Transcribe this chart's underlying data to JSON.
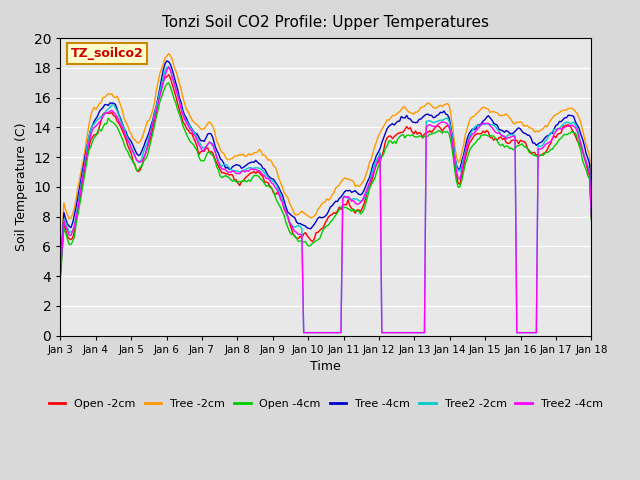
{
  "title": "Tonzi Soil CO2 Profile: Upper Temperatures",
  "xlabel": "Time",
  "ylabel": "Soil Temperature (C)",
  "ylim": [
    0,
    20
  ],
  "xlim": [
    0,
    15
  ],
  "background_color": "#e8e8e8",
  "plot_bg_color": "#e0e0e0",
  "label_box_text": "TZ_soilco2",
  "xtick_labels": [
    "Jan 3",
    "Jan 4",
    "Jan 5",
    "Jan 6",
    "Jan 7",
    "Jan 8",
    "Jan 9",
    "Jan 10",
    "Jan 11",
    "Jan 12",
    "Jan 13",
    "Jan 14",
    "Jan 15",
    "Jan 16",
    "Jan 17",
    "Jan 18"
  ],
  "series": [
    {
      "name": "Open -2cm",
      "color": "#ff0000"
    },
    {
      "name": "Tree -2cm",
      "color": "#ff9900"
    },
    {
      "name": "Open -4cm",
      "color": "#00cc00"
    },
    {
      "name": "Tree -4cm",
      "color": "#0000cc"
    },
    {
      "name": "Tree2 -2cm",
      "color": "#00cccc"
    },
    {
      "name": "Tree2 -4cm",
      "color": "#ff00ff"
    }
  ]
}
